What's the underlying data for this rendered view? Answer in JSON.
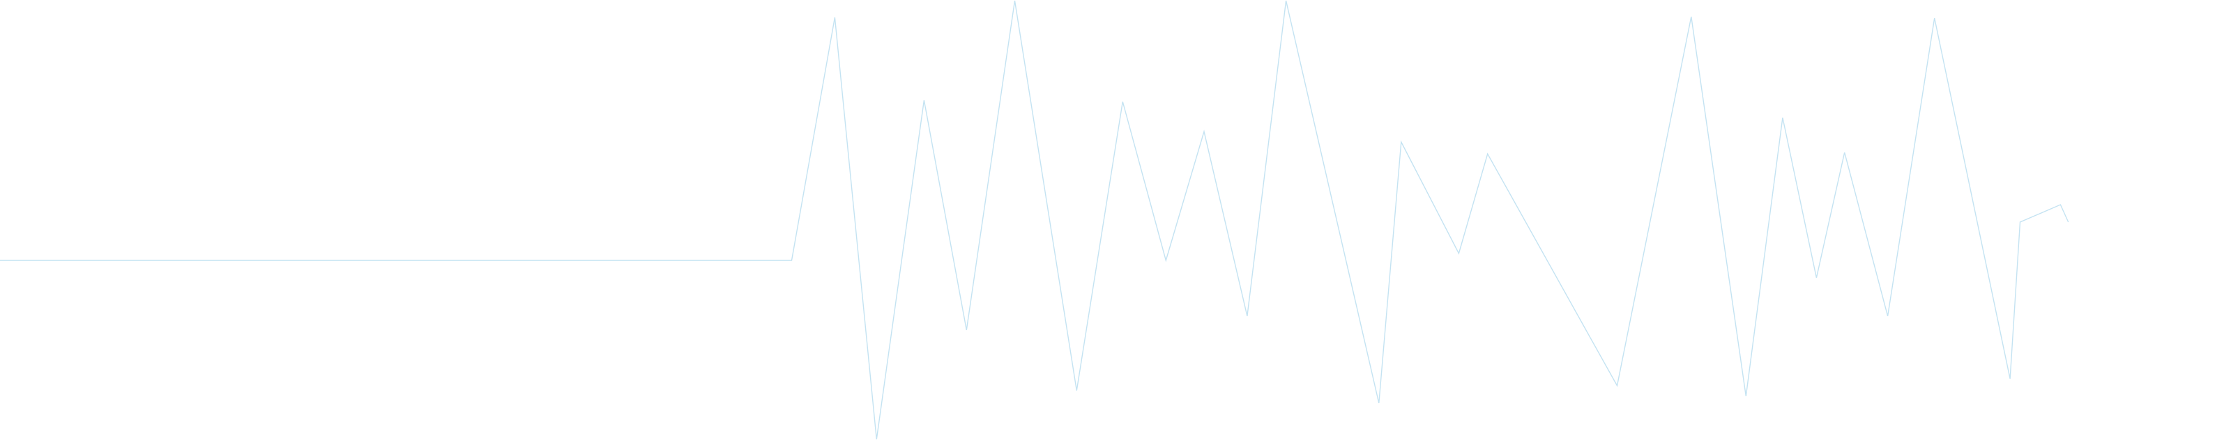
{
  "chart_data": {
    "type": "line",
    "title": "",
    "xlabel": "",
    "ylabel": "",
    "grid": false,
    "legend": "none",
    "x_range": [
      0,
      31
    ],
    "y_range": [
      0,
      630
    ],
    "series": [
      {
        "color": "#c4e3f2",
        "points": [
          [
            0,
            373
          ],
          [
            11,
            373
          ],
          [
            11.6,
            24
          ],
          [
            12.18,
            630
          ],
          [
            12.84,
            143
          ],
          [
            13.43,
            473
          ],
          [
            14.1,
            0
          ],
          [
            14.96,
            560
          ],
          [
            15.6,
            145
          ],
          [
            16.2,
            373
          ],
          [
            16.73,
            188
          ],
          [
            17.33,
            453
          ],
          [
            17.87,
            0
          ],
          [
            19.16,
            578
          ],
          [
            19.47,
            203
          ],
          [
            20.27,
            363
          ],
          [
            20.67,
            220
          ],
          [
            22.47,
            553
          ],
          [
            23.5,
            23
          ],
          [
            24.26,
            568
          ],
          [
            24.77,
            168
          ],
          [
            25.24,
            398
          ],
          [
            25.63,
            218
          ],
          [
            26.23,
            453
          ],
          [
            26.88,
            25
          ],
          [
            27.93,
            543
          ],
          [
            28.07,
            318
          ],
          [
            28.63,
            293
          ],
          [
            28.74,
            318
          ]
        ]
      }
    ]
  },
  "style": {
    "background": "#ffffff",
    "line_color": "#c4e3f2"
  }
}
